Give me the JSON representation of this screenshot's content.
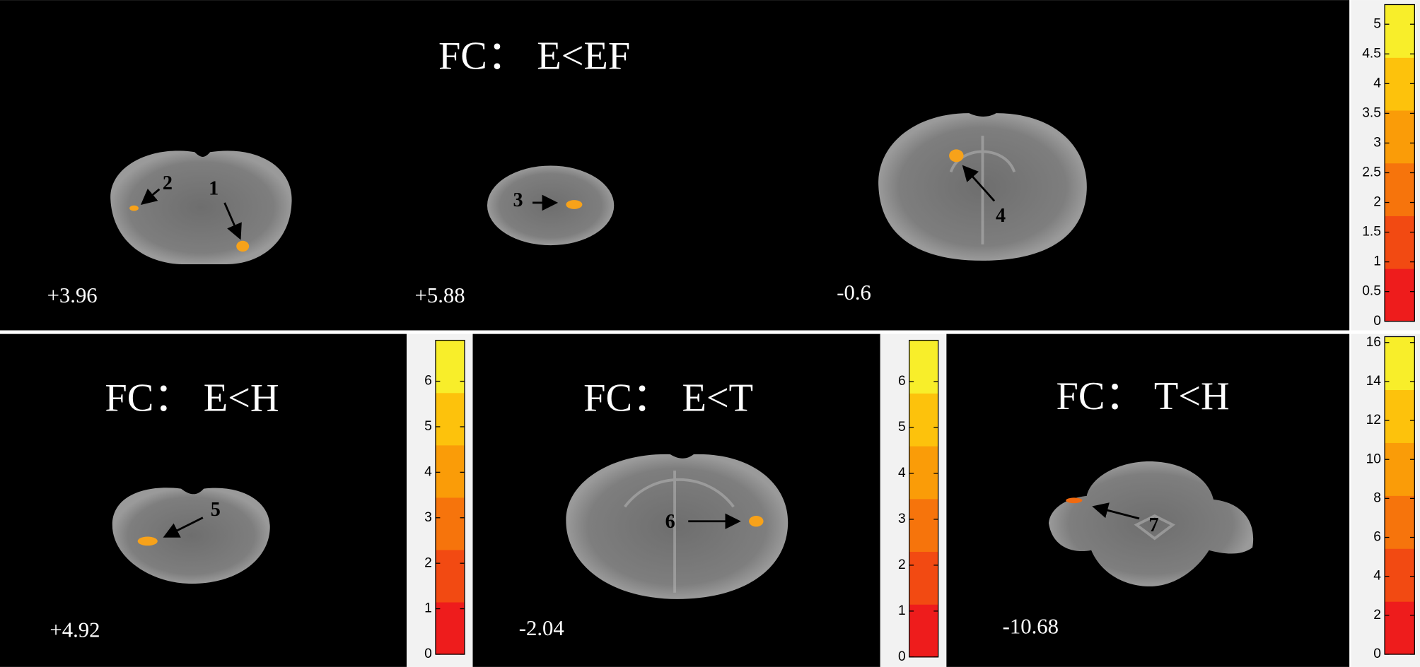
{
  "panels": [
    {
      "title": "FC： E<EF",
      "slices": [
        "+3.96",
        "+5.88",
        "-0.6"
      ],
      "regions": [
        "1",
        "2",
        "3",
        "4"
      ],
      "colorbar": {
        "clim": [
          0,
          5.33
        ],
        "ticks": [
          0,
          0.5,
          1,
          1.5,
          2,
          2.5,
          3,
          3.5,
          4,
          4.5,
          5
        ],
        "colors": [
          "#ee1c1c",
          "#f24a12",
          "#f6740c",
          "#fa9c08",
          "#fdc20c",
          "#f8ee2a"
        ]
      }
    },
    {
      "title": "FC： E<H",
      "slices": [
        "+4.92"
      ],
      "regions": [
        "5"
      ],
      "colorbar": {
        "clim": [
          0,
          6.9
        ],
        "ticks": [
          0,
          1,
          2,
          3,
          4,
          5,
          6
        ],
        "colors": [
          "#ee1c1c",
          "#f24a12",
          "#f6740c",
          "#fa9c08",
          "#fdc20c",
          "#f8ee2a"
        ]
      }
    },
    {
      "title": "FC： E<T",
      "slices": [
        "-2.04"
      ],
      "regions": [
        "6"
      ],
      "colorbar": {
        "clim": [
          0,
          6.9
        ],
        "ticks": [
          0,
          1,
          2,
          3,
          4,
          5,
          6
        ],
        "colors": [
          "#ee1c1c",
          "#f24a12",
          "#f6740c",
          "#fa9c08",
          "#fdc20c",
          "#f8ee2a"
        ]
      }
    },
    {
      "title": "FC： T<H",
      "slices": [
        "-10.68"
      ],
      "regions": [
        "7"
      ],
      "colorbar": {
        "clim": [
          0,
          16.3
        ],
        "ticks": [
          0,
          2,
          4,
          6,
          8,
          10,
          12,
          14,
          16
        ],
        "colors": [
          "#ee1c1c",
          "#f24a12",
          "#f6740c",
          "#fa9c08",
          "#fdc20c",
          "#f8ee2a"
        ]
      }
    }
  ]
}
